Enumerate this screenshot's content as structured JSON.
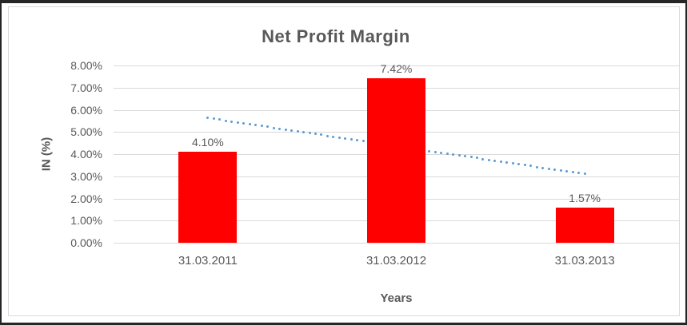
{
  "chart_data": {
    "type": "bar",
    "title": "Net Profit Margin",
    "xlabel": "Years",
    "ylabel": "IN (%)",
    "categories": [
      "31.03.2011",
      "31.03.2012",
      "31.03.2013"
    ],
    "values": [
      4.1,
      7.42,
      1.57
    ],
    "data_labels": [
      "4.10%",
      "7.42%",
      "1.57%"
    ],
    "y_ticks": [
      "0.00%",
      "1.00%",
      "2.00%",
      "3.00%",
      "4.00%",
      "5.00%",
      "6.00%",
      "7.00%",
      "8.00%"
    ],
    "ylim": [
      0,
      8
    ],
    "grid": true,
    "legend": "none",
    "trendline": {
      "type": "linear",
      "style": "dotted",
      "start_value": 5.63,
      "end_value": 3.1
    },
    "colors": {
      "bar": "#ff0000",
      "trend": "#5b9bd5",
      "grid": "#d9d9d9",
      "text": "#595959",
      "title": "#595959",
      "frame": "#262626",
      "chart_border": "#d9d9d9"
    }
  }
}
